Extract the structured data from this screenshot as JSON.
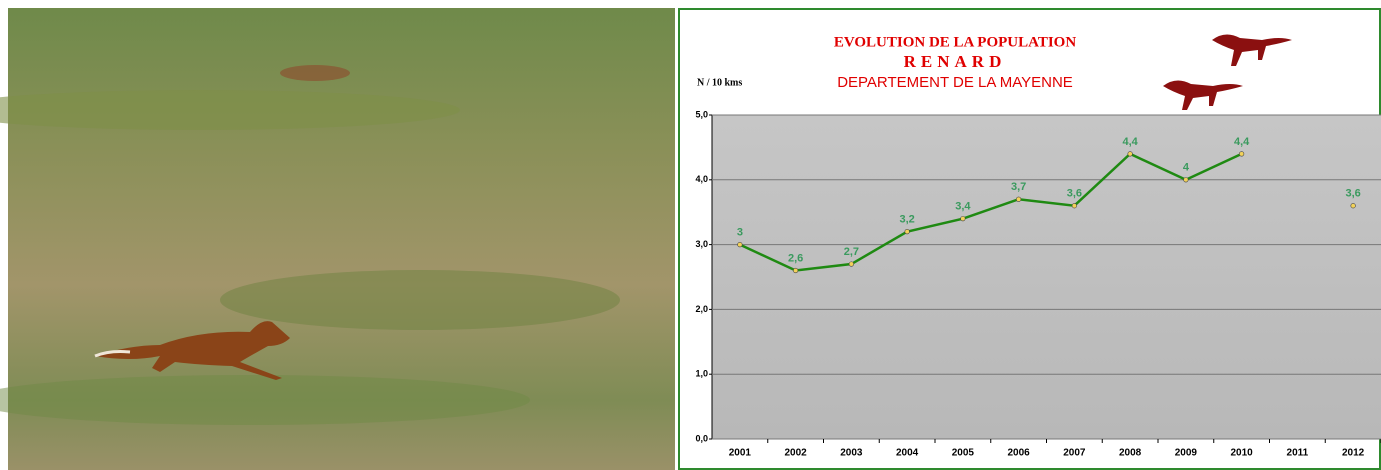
{
  "chart_data": {
    "type": "line",
    "title": "EVOLUTION DE LA POPULATION",
    "subtitle": "RENARD",
    "subtitle2": "DEPARTEMENT DE LA MAYENNE",
    "y_label": "N / 10 kms",
    "categories": [
      "2001",
      "2002",
      "2003",
      "2004",
      "2005",
      "2006",
      "2007",
      "2008",
      "2009",
      "2010",
      "2011",
      "2012"
    ],
    "series": [
      {
        "color": "#1f8a12",
        "values": [
          3,
          2.6,
          2.7,
          3.2,
          3.4,
          3.7,
          3.6,
          4.4,
          4,
          4.4,
          null,
          3.6
        ],
        "value_labels": [
          "3",
          "2,6",
          "2,7",
          "3,2",
          "3,4",
          "3,7",
          "3,6",
          "4,4",
          "4",
          "4,4",
          null,
          "3,6"
        ]
      }
    ],
    "ylim": [
      0,
      5
    ],
    "yticks": [
      {
        "value": 0,
        "label": "0,0"
      },
      {
        "value": 1,
        "label": "1,0"
      },
      {
        "value": 2,
        "label": "2,0"
      },
      {
        "value": 3,
        "label": "3,0"
      },
      {
        "value": 4,
        "label": "4,0"
      },
      {
        "value": 5,
        "label": "5,0"
      }
    ],
    "grid": true
  }
}
